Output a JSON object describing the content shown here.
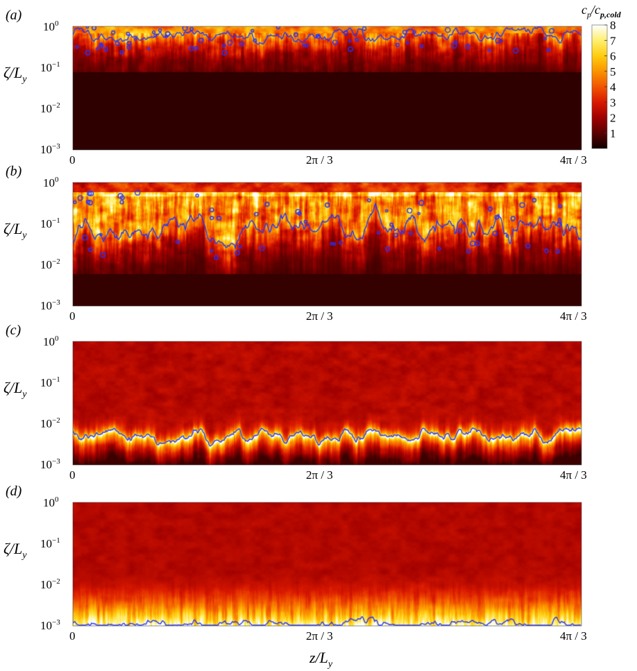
{
  "figure": {
    "colorbar": {
      "title": "c_p/c_p,cold",
      "ticks": [
        1,
        2,
        3,
        4,
        5,
        6,
        7,
        8
      ],
      "range": [
        0,
        8
      ],
      "colormap": [
        "#100000",
        "#5a0000",
        "#a00000",
        "#d81800",
        "#f25500",
        "#fa9400",
        "#ffcc10",
        "#ffef70",
        "#ffffff"
      ]
    },
    "contour_color": "#2233ff",
    "xlabel": "z/L_y"
  },
  "chart_data": [
    {
      "type": "heatmap",
      "panel_label": "(a)",
      "ylabel": "ζ/L_y",
      "yscale": "log",
      "ylim": [
        0.001,
        1
      ],
      "ytick_labels": [
        "10^-3",
        "10^-2",
        "10^-1",
        "10^0"
      ],
      "xlim": [
        0,
        4.18879
      ],
      "xtick_labels": [
        "0",
        "2π/3",
        "4π/3"
      ],
      "contour_mean_zeta": 0.55,
      "front_top_zeta": 1.0,
      "front_bottom_zeta": 0.08,
      "background_value": 0.4
    },
    {
      "type": "heatmap",
      "panel_label": "(b)",
      "ylabel": "ζ/L_y",
      "yscale": "log",
      "ylim": [
        0.001,
        1
      ],
      "ytick_labels": [
        "10^-3",
        "10^-2",
        "10^-1",
        "10^0"
      ],
      "xlim": [
        0,
        4.18879
      ],
      "xtick_labels": [
        "0",
        "2π/3",
        "4π/3"
      ],
      "contour_mean_zeta": 0.07,
      "front_top_zeta": 0.6,
      "front_bottom_zeta": 0.006,
      "background_value": 0.5
    },
    {
      "type": "heatmap",
      "panel_label": "(c)",
      "ylabel": "ζ/L_y",
      "yscale": "log",
      "ylim": [
        0.001,
        1
      ],
      "ytick_labels": [
        "10^-3",
        "10^-2",
        "10^-1",
        "10^0"
      ],
      "xlim": [
        0,
        4.18879
      ],
      "xtick_labels": [
        "0",
        "2π/3",
        "4π/3"
      ],
      "contour_mean_zeta": 0.0045,
      "front_top_zeta": 0.02,
      "front_bottom_zeta": 0.0013,
      "background_value": 1.8
    },
    {
      "type": "heatmap",
      "panel_label": "(d)",
      "ylabel": "ζ/L_y",
      "yscale": "log",
      "ylim": [
        0.001,
        1
      ],
      "ytick_labels": [
        "10^-3",
        "10^-2",
        "10^-1",
        "10^0"
      ],
      "xlim": [
        0,
        4.18879
      ],
      "xtick_labels": [
        "0",
        "2π/3",
        "4π/3"
      ],
      "contour_mean_zeta": 0.00105,
      "front_top_zeta": 0.008,
      "front_bottom_zeta": 0.001,
      "background_value": 1.9
    }
  ]
}
